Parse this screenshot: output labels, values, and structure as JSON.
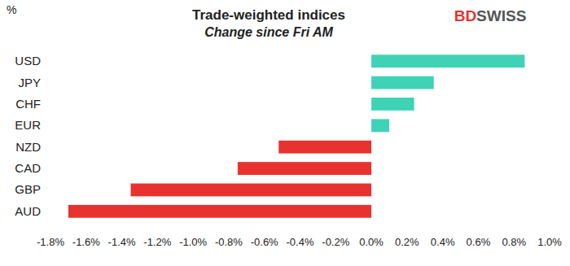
{
  "chart_data": {
    "type": "bar",
    "orientation": "horizontal",
    "title": "Trade-weighted indices",
    "subtitle": "Change since Fri AM",
    "unit_label": "%",
    "brand": "BDSWISS",
    "categories": [
      "USD",
      "JPY",
      "CHF",
      "EUR",
      "NZD",
      "CAD",
      "GBP",
      "AUD"
    ],
    "values": [
      0.86,
      0.35,
      0.24,
      0.1,
      -0.52,
      -0.75,
      -1.35,
      -1.7
    ],
    "colors": [
      "#3fd3b6",
      "#3fd3b6",
      "#3fd3b6",
      "#3fd3b6",
      "#e8322f",
      "#e8322f",
      "#e8322f",
      "#e8322f"
    ],
    "xlim": [
      -1.8,
      1.0
    ],
    "xticks": [
      {
        "value": -1.8,
        "label": "-1.8%"
      },
      {
        "value": -1.6,
        "label": "-1.6%"
      },
      {
        "value": -1.4,
        "label": "-1.4%"
      },
      {
        "value": -1.2,
        "label": "-1.2%"
      },
      {
        "value": -1.0,
        "label": "-1.0%"
      },
      {
        "value": -0.8,
        "label": "-0.8%"
      },
      {
        "value": -0.6,
        "label": "-0.6%"
      },
      {
        "value": -0.4,
        "label": "-0.4%"
      },
      {
        "value": -0.2,
        "label": "-0.2%"
      },
      {
        "value": 0.0,
        "label": "0.0%"
      },
      {
        "value": 0.2,
        "label": "0.2%"
      },
      {
        "value": 0.4,
        "label": "0.4%"
      },
      {
        "value": 0.6,
        "label": "0.6%"
      },
      {
        "value": 0.8,
        "label": "0.8%"
      },
      {
        "value": 1.0,
        "label": "1.0%"
      }
    ],
    "grid": false
  }
}
